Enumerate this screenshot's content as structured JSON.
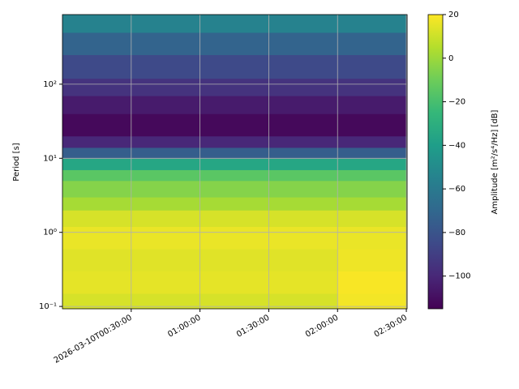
{
  "chart_data": {
    "type": "heatmap",
    "x": [
      "2026-03-10T00:00:00",
      "2026-03-10T00:30:00",
      "2026-03-10T01:00:00",
      "2026-03-10T01:30:00",
      "2026-03-10T02:00:00",
      "2026-03-10T02:30:20"
    ],
    "y": [
      0.093,
      0.15,
      0.3,
      0.6,
      1.2,
      2,
      3,
      5,
      7,
      10,
      14,
      20,
      40,
      70,
      120,
      250,
      500,
      870
    ],
    "values": [
      [
        12,
        12,
        12,
        12,
        18
      ],
      [
        15,
        15,
        15,
        15,
        19
      ],
      [
        14,
        14,
        14,
        14,
        17
      ],
      [
        16,
        16,
        16,
        16,
        16
      ],
      [
        12,
        12,
        12,
        12,
        12
      ],
      [
        2,
        2,
        2,
        2,
        2
      ],
      [
        -5,
        -5,
        -5,
        -5,
        -5
      ],
      [
        -15,
        -15,
        -15,
        -15,
        -15
      ],
      [
        -35,
        -35,
        -35,
        -35,
        -35
      ],
      [
        -75,
        -75,
        -75,
        -75,
        -75
      ],
      [
        -100,
        -100,
        -100,
        -100,
        -100
      ],
      [
        -112,
        -112,
        -112,
        -112,
        -112
      ],
      [
        -105,
        -105,
        -105,
        -105,
        -105
      ],
      [
        -95,
        -95,
        -95,
        -95,
        -95
      ],
      [
        -85,
        -85,
        -85,
        -85,
        -85
      ],
      [
        -72,
        -72,
        -72,
        -72,
        -72
      ],
      [
        -55,
        -55,
        -55,
        -55,
        -55
      ]
    ],
    "xlim": [
      "2026-03-10T00:00:00",
      "2026-03-10T02:30:20"
    ],
    "xticks": [
      {
        "value": "2026-03-10T00:30:00",
        "label": "2026-03-10T00:30:00"
      },
      {
        "value": "2026-03-10T01:00:00",
        "label": "01:00:00"
      },
      {
        "value": "2026-03-10T01:30:00",
        "label": "01:30:00"
      },
      {
        "value": "2026-03-10T02:00:00",
        "label": "02:00:00"
      },
      {
        "value": "2026-03-10T02:30:00",
        "label": "02:30:00"
      }
    ],
    "ylim": [
      0.093,
      870
    ],
    "y_log": true,
    "yticks": [
      {
        "value": 0.1,
        "label": "10⁻¹"
      },
      {
        "value": 1,
        "label": "10⁰"
      },
      {
        "value": 10,
        "label": "10¹"
      },
      {
        "value": 100,
        "label": "10²"
      }
    ],
    "ylabel": "Period [s]",
    "grid": true,
    "colormap": "viridis",
    "clim": [
      -115,
      20
    ],
    "cticks": [
      20,
      0,
      {
        "value": -20,
        "label": "−20"
      },
      {
        "value": -40,
        "label": "−40"
      },
      {
        "value": -60,
        "label": "−60"
      },
      {
        "value": -80,
        "label": "−80"
      },
      {
        "value": -100,
        "label": "−100"
      }
    ],
    "clabel": "Amplitude [m²/s⁴/Hz] [dB]"
  }
}
